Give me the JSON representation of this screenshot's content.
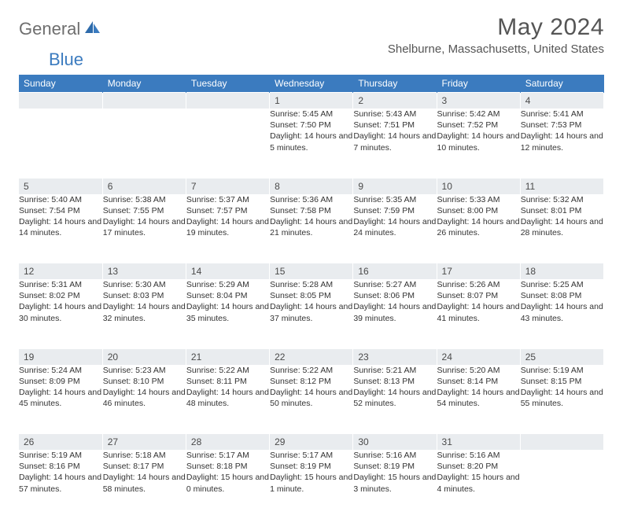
{
  "logo": {
    "text1": "General",
    "text2": "Blue"
  },
  "title": "May 2024",
  "location": "Shelburne, Massachusetts, United States",
  "weekdays": [
    "Sunday",
    "Monday",
    "Tuesday",
    "Wednesday",
    "Thursday",
    "Friday",
    "Saturday"
  ],
  "colors": {
    "headerBg": "#3b7bbf",
    "dayNumBg": "#e9ecef"
  },
  "weeks": [
    {
      "nums": [
        "",
        "",
        "",
        "1",
        "2",
        "3",
        "4"
      ],
      "cells": [
        null,
        null,
        null,
        {
          "sunrise": "Sunrise: 5:45 AM",
          "sunset": "Sunset: 7:50 PM",
          "daylight": "Daylight: 14 hours and 5 minutes."
        },
        {
          "sunrise": "Sunrise: 5:43 AM",
          "sunset": "Sunset: 7:51 PM",
          "daylight": "Daylight: 14 hours and 7 minutes."
        },
        {
          "sunrise": "Sunrise: 5:42 AM",
          "sunset": "Sunset: 7:52 PM",
          "daylight": "Daylight: 14 hours and 10 minutes."
        },
        {
          "sunrise": "Sunrise: 5:41 AM",
          "sunset": "Sunset: 7:53 PM",
          "daylight": "Daylight: 14 hours and 12 minutes."
        }
      ]
    },
    {
      "nums": [
        "5",
        "6",
        "7",
        "8",
        "9",
        "10",
        "11"
      ],
      "cells": [
        {
          "sunrise": "Sunrise: 5:40 AM",
          "sunset": "Sunset: 7:54 PM",
          "daylight": "Daylight: 14 hours and 14 minutes."
        },
        {
          "sunrise": "Sunrise: 5:38 AM",
          "sunset": "Sunset: 7:55 PM",
          "daylight": "Daylight: 14 hours and 17 minutes."
        },
        {
          "sunrise": "Sunrise: 5:37 AM",
          "sunset": "Sunset: 7:57 PM",
          "daylight": "Daylight: 14 hours and 19 minutes."
        },
        {
          "sunrise": "Sunrise: 5:36 AM",
          "sunset": "Sunset: 7:58 PM",
          "daylight": "Daylight: 14 hours and 21 minutes."
        },
        {
          "sunrise": "Sunrise: 5:35 AM",
          "sunset": "Sunset: 7:59 PM",
          "daylight": "Daylight: 14 hours and 24 minutes."
        },
        {
          "sunrise": "Sunrise: 5:33 AM",
          "sunset": "Sunset: 8:00 PM",
          "daylight": "Daylight: 14 hours and 26 minutes."
        },
        {
          "sunrise": "Sunrise: 5:32 AM",
          "sunset": "Sunset: 8:01 PM",
          "daylight": "Daylight: 14 hours and 28 minutes."
        }
      ]
    },
    {
      "nums": [
        "12",
        "13",
        "14",
        "15",
        "16",
        "17",
        "18"
      ],
      "cells": [
        {
          "sunrise": "Sunrise: 5:31 AM",
          "sunset": "Sunset: 8:02 PM",
          "daylight": "Daylight: 14 hours and 30 minutes."
        },
        {
          "sunrise": "Sunrise: 5:30 AM",
          "sunset": "Sunset: 8:03 PM",
          "daylight": "Daylight: 14 hours and 32 minutes."
        },
        {
          "sunrise": "Sunrise: 5:29 AM",
          "sunset": "Sunset: 8:04 PM",
          "daylight": "Daylight: 14 hours and 35 minutes."
        },
        {
          "sunrise": "Sunrise: 5:28 AM",
          "sunset": "Sunset: 8:05 PM",
          "daylight": "Daylight: 14 hours and 37 minutes."
        },
        {
          "sunrise": "Sunrise: 5:27 AM",
          "sunset": "Sunset: 8:06 PM",
          "daylight": "Daylight: 14 hours and 39 minutes."
        },
        {
          "sunrise": "Sunrise: 5:26 AM",
          "sunset": "Sunset: 8:07 PM",
          "daylight": "Daylight: 14 hours and 41 minutes."
        },
        {
          "sunrise": "Sunrise: 5:25 AM",
          "sunset": "Sunset: 8:08 PM",
          "daylight": "Daylight: 14 hours and 43 minutes."
        }
      ]
    },
    {
      "nums": [
        "19",
        "20",
        "21",
        "22",
        "23",
        "24",
        "25"
      ],
      "cells": [
        {
          "sunrise": "Sunrise: 5:24 AM",
          "sunset": "Sunset: 8:09 PM",
          "daylight": "Daylight: 14 hours and 45 minutes."
        },
        {
          "sunrise": "Sunrise: 5:23 AM",
          "sunset": "Sunset: 8:10 PM",
          "daylight": "Daylight: 14 hours and 46 minutes."
        },
        {
          "sunrise": "Sunrise: 5:22 AM",
          "sunset": "Sunset: 8:11 PM",
          "daylight": "Daylight: 14 hours and 48 minutes."
        },
        {
          "sunrise": "Sunrise: 5:22 AM",
          "sunset": "Sunset: 8:12 PM",
          "daylight": "Daylight: 14 hours and 50 minutes."
        },
        {
          "sunrise": "Sunrise: 5:21 AM",
          "sunset": "Sunset: 8:13 PM",
          "daylight": "Daylight: 14 hours and 52 minutes."
        },
        {
          "sunrise": "Sunrise: 5:20 AM",
          "sunset": "Sunset: 8:14 PM",
          "daylight": "Daylight: 14 hours and 54 minutes."
        },
        {
          "sunrise": "Sunrise: 5:19 AM",
          "sunset": "Sunset: 8:15 PM",
          "daylight": "Daylight: 14 hours and 55 minutes."
        }
      ]
    },
    {
      "nums": [
        "26",
        "27",
        "28",
        "29",
        "30",
        "31",
        ""
      ],
      "cells": [
        {
          "sunrise": "Sunrise: 5:19 AM",
          "sunset": "Sunset: 8:16 PM",
          "daylight": "Daylight: 14 hours and 57 minutes."
        },
        {
          "sunrise": "Sunrise: 5:18 AM",
          "sunset": "Sunset: 8:17 PM",
          "daylight": "Daylight: 14 hours and 58 minutes."
        },
        {
          "sunrise": "Sunrise: 5:17 AM",
          "sunset": "Sunset: 8:18 PM",
          "daylight": "Daylight: 15 hours and 0 minutes."
        },
        {
          "sunrise": "Sunrise: 5:17 AM",
          "sunset": "Sunset: 8:19 PM",
          "daylight": "Daylight: 15 hours and 1 minute."
        },
        {
          "sunrise": "Sunrise: 5:16 AM",
          "sunset": "Sunset: 8:19 PM",
          "daylight": "Daylight: 15 hours and 3 minutes."
        },
        {
          "sunrise": "Sunrise: 5:16 AM",
          "sunset": "Sunset: 8:20 PM",
          "daylight": "Daylight: 15 hours and 4 minutes."
        },
        null
      ]
    }
  ]
}
